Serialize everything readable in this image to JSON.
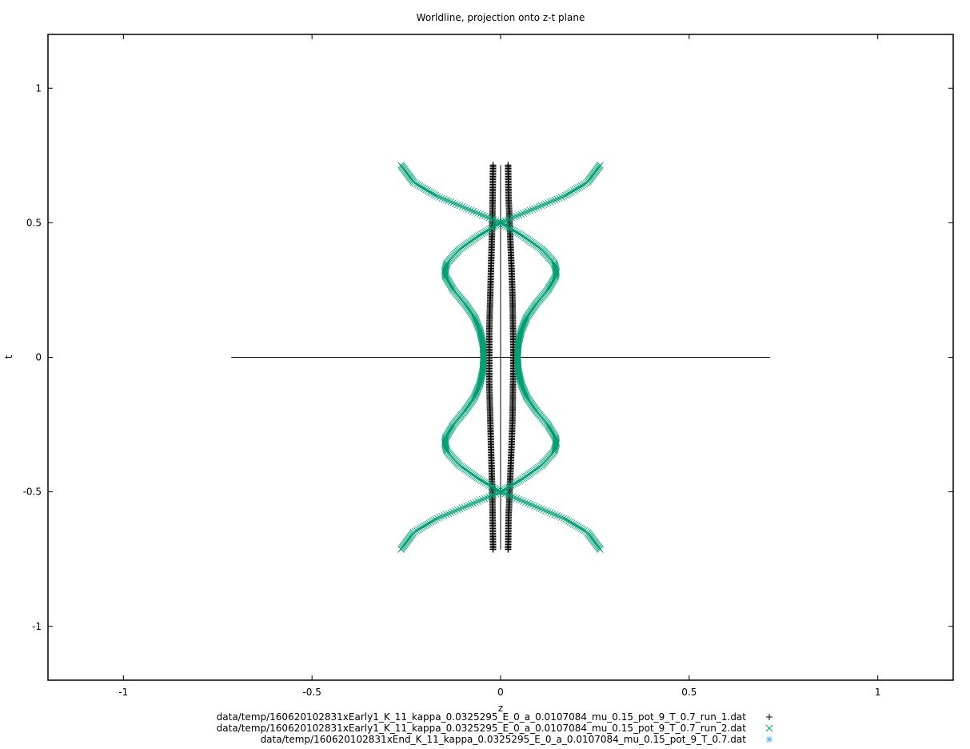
{
  "chart_data": {
    "type": "scatter",
    "title": "Worldline, projection onto z-t plane",
    "xlabel": "z",
    "ylabel": "t",
    "xlim": [
      -1.2,
      1.2
    ],
    "ylim": [
      -1.2,
      1.2
    ],
    "xticks": [
      -1,
      -0.5,
      0,
      0.5,
      1
    ],
    "xtick_labels": [
      "-1",
      "-0.5",
      "0",
      "0.5",
      "1"
    ],
    "yticks": [
      -1,
      -0.5,
      0,
      0.5,
      1
    ],
    "ytick_labels": [
      "-1",
      "-0.5",
      "0",
      "0.5",
      "1"
    ],
    "grid": false,
    "legend_position": "bottom",
    "reference_lines": [
      {
        "x": [
          -0.714,
          0.714
        ],
        "y": [
          0,
          0
        ]
      },
      {
        "x": [
          0,
          0
        ],
        "y": [
          -0.714,
          0.714
        ]
      }
    ],
    "series": [
      {
        "name": "data/temp/160620102831xEarly1_K_11_kappa_0.0325295_E_0_a_0.0107084_mu_0.15_pot_9_T_0.7_run_1.dat",
        "marker": "plus",
        "color": "#000000",
        "t": [
          -0.714,
          -0.6,
          -0.5,
          -0.4,
          -0.3,
          -0.2,
          -0.1,
          0,
          0.1,
          0.2,
          0.3,
          0.4,
          0.5,
          0.6,
          0.714
        ],
        "z_left": [
          -0.02,
          -0.021,
          -0.022,
          -0.024,
          -0.026,
          -0.028,
          -0.03,
          -0.03,
          -0.03,
          -0.028,
          -0.026,
          -0.024,
          -0.022,
          -0.021,
          -0.02
        ],
        "z_right": [
          0.02,
          0.021,
          0.024,
          0.027,
          0.03,
          0.032,
          0.033,
          0.034,
          0.033,
          0.032,
          0.03,
          0.027,
          0.024,
          0.021,
          0.02
        ]
      },
      {
        "name": "data/temp/160620102831xEarly1_K_11_kappa_0.0325295_E_0_a_0.0107084_mu_0.15_pot_9_T_0.7_run_2.dat",
        "marker": "cross",
        "color": "#009e73",
        "t": [
          -0.714,
          -0.65,
          -0.6,
          -0.55,
          -0.5,
          -0.45,
          -0.4,
          -0.35,
          -0.32,
          -0.3,
          -0.25,
          -0.2,
          -0.15,
          -0.1,
          -0.05,
          0,
          0.05,
          0.1,
          0.15,
          0.2,
          0.25,
          0.3,
          0.32,
          0.35,
          0.4,
          0.45,
          0.5,
          0.55,
          0.6,
          0.65,
          0.714
        ],
        "z_right": [
          0.264,
          0.23,
          0.17,
          0.085,
          0,
          0.06,
          0.11,
          0.142,
          0.148,
          0.146,
          0.125,
          0.095,
          0.07,
          0.055,
          0.047,
          0.045,
          0.047,
          0.055,
          0.07,
          0.095,
          0.125,
          0.146,
          0.148,
          0.142,
          0.11,
          0.06,
          0,
          0.085,
          0.17,
          0.23,
          0.264
        ]
      },
      {
        "name": "data/temp/160620102831xEnd_K_11_kappa_0.0325295_E_0_a_0.0107084_mu_0.15_pot_9_T_0.7.dat",
        "marker": "star",
        "color": "#56b4e9",
        "t": [],
        "z": []
      }
    ]
  }
}
